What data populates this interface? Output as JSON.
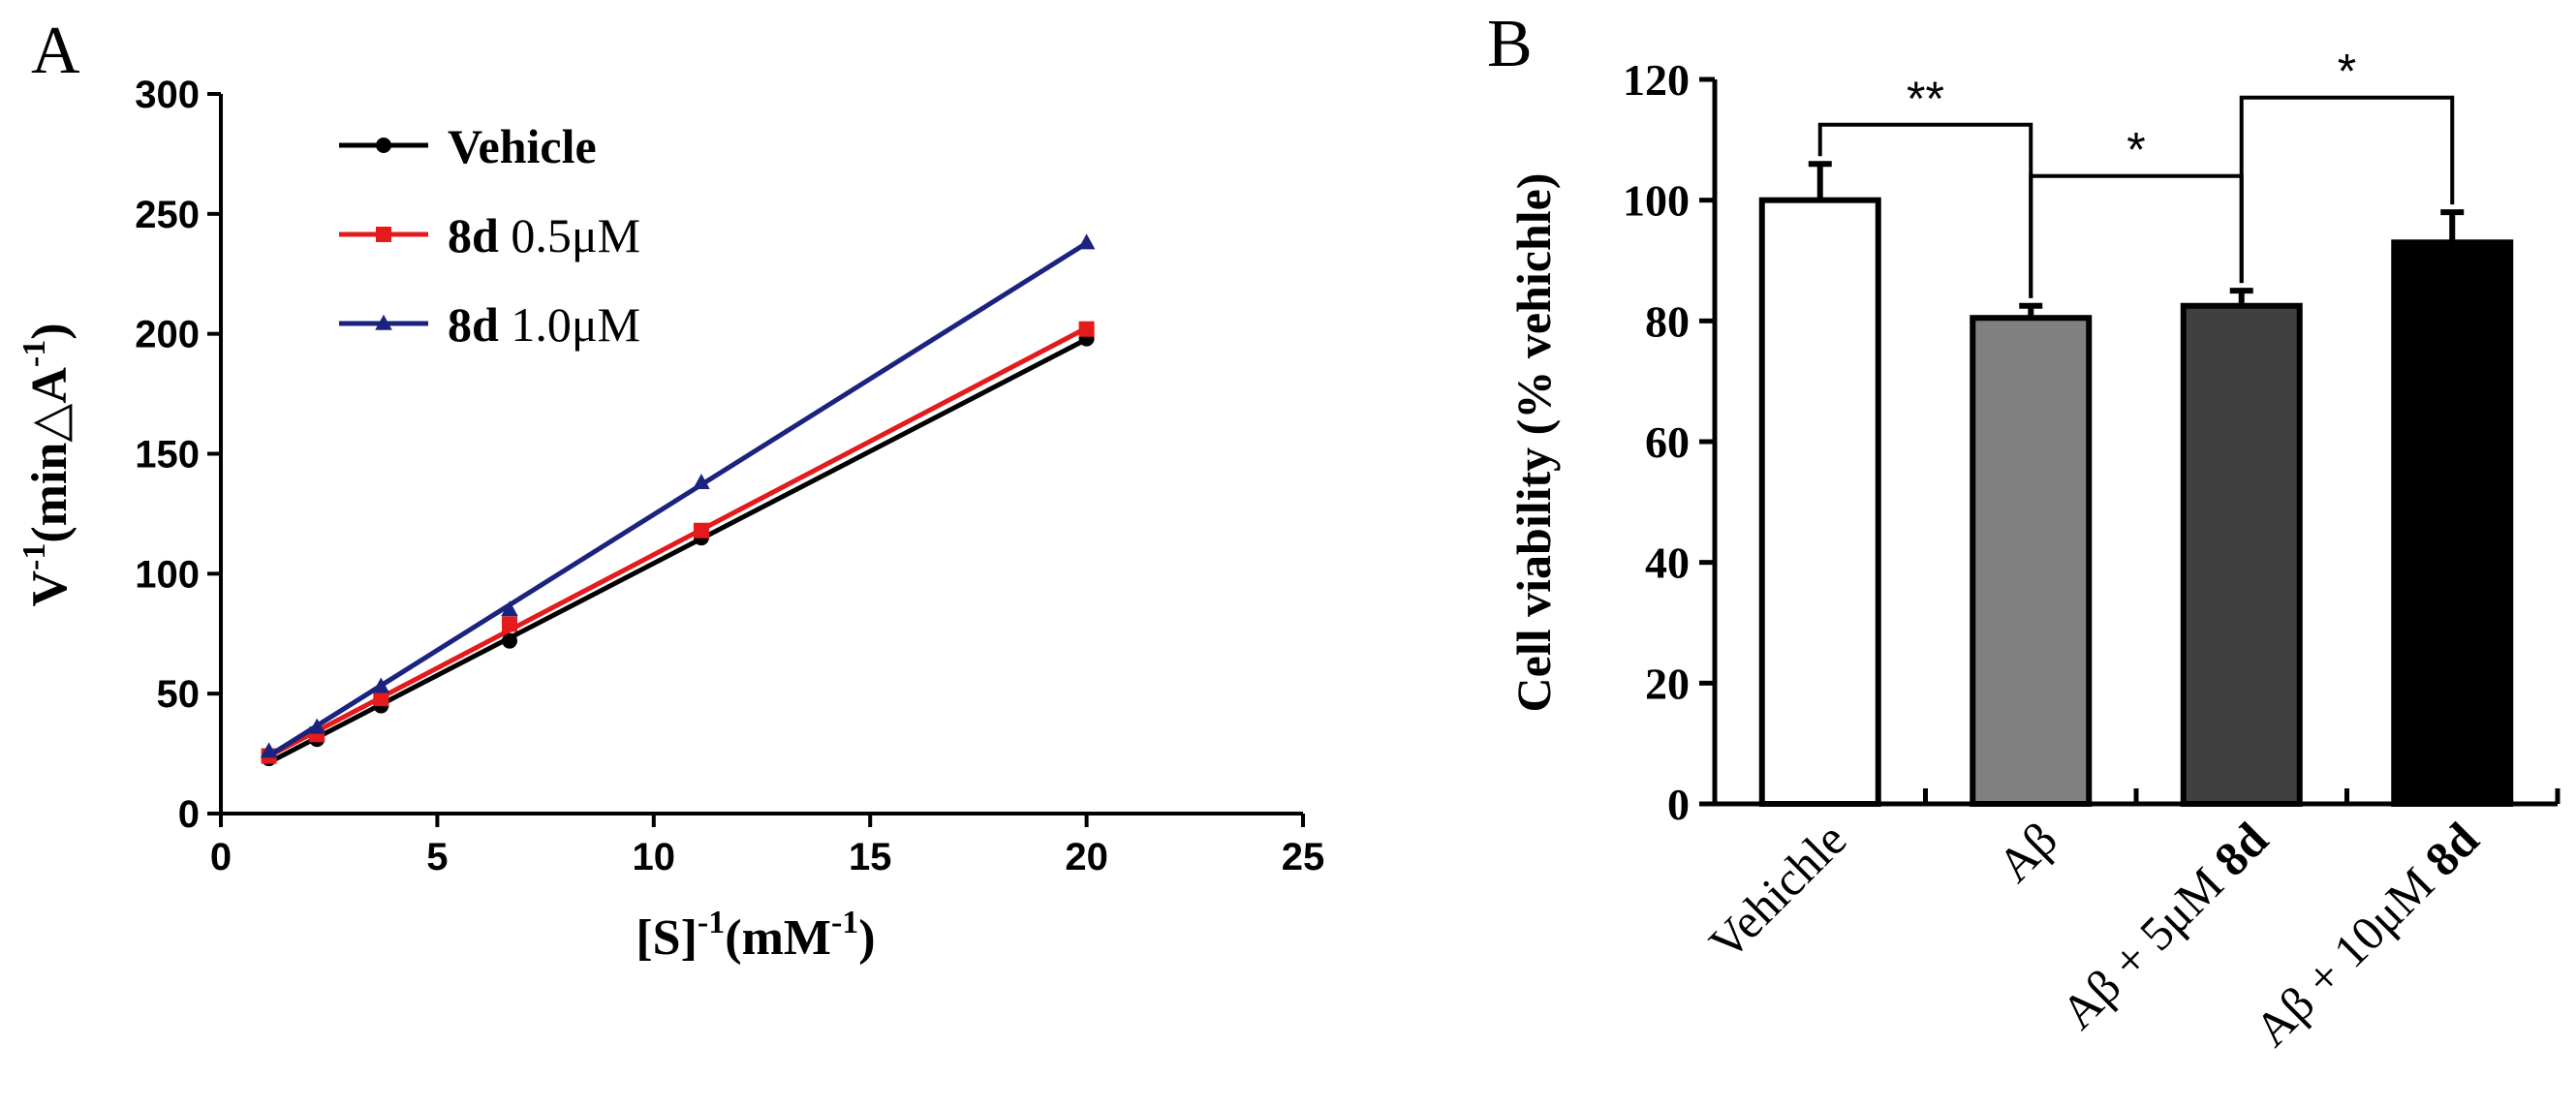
{
  "chart_data": [
    {
      "panel_label": "A",
      "type": "line",
      "xlabel": {
        "base": "[S]",
        "sup": "-1",
        "unit_open": "(mM",
        "unit_sup": "-1",
        "unit_close": ")"
      },
      "ylabel": {
        "base": "V",
        "sup": "-1",
        "unit_open": "(min△A",
        "unit_sup": "-1",
        "unit_close": ")"
      },
      "xlim": [
        0,
        25
      ],
      "ylim": [
        0,
        300
      ],
      "xticks": [
        "0",
        "5",
        "10",
        "15",
        "20",
        "25"
      ],
      "yticks": [
        "0",
        "50",
        "100",
        "150",
        "200",
        "250",
        "300"
      ],
      "grid": false,
      "legend_position": "top-left",
      "x": [
        1.11,
        2.22,
        3.7,
        6.67,
        11.1,
        20
      ],
      "series": [
        {
          "name": "Vehicle",
          "name_bold": "Vehicle",
          "name_rest": "",
          "marker": "circle",
          "color": "#000000",
          "values": [
            23,
            31,
            45,
            72,
            115,
            198
          ]
        },
        {
          "name": "8d 0.5μM",
          "name_bold": "8d",
          "name_rest": " 0.5μM",
          "marker": "square",
          "color": "#e41a1c",
          "values": [
            24,
            33,
            48,
            79,
            118,
            202
          ]
        },
        {
          "name": "8d 1.0μM",
          "name_bold": "8d",
          "name_rest": " 1.0μM",
          "marker": "triangle",
          "color": "#1a237e",
          "values": [
            26,
            36,
            53,
            85,
            138,
            238
          ]
        }
      ]
    },
    {
      "panel_label": "B",
      "type": "bar",
      "ylabel": "Cell viability (% vehichle)",
      "ylim": [
        0,
        120
      ],
      "yticks": [
        "0",
        "20",
        "40",
        "60",
        "80",
        "100",
        "120"
      ],
      "categories": [
        {
          "plain": "Vehichle",
          "bold": ""
        },
        {
          "plain": "Aβ",
          "bold": ""
        },
        {
          "plain": "Aβ + 5μM ",
          "bold": "8d"
        },
        {
          "plain": "Aβ + 10μM ",
          "bold": "8d"
        }
      ],
      "values": [
        100,
        80.5,
        82.5,
        93
      ],
      "errors": [
        6,
        2,
        2.5,
        5
      ],
      "bar_colors": [
        "#ffffff",
        "#808080",
        "#404040",
        "#000000"
      ],
      "significance": [
        {
          "from": 0,
          "to": 1,
          "label": "**"
        },
        {
          "from": 1,
          "to": 2,
          "label": "*"
        },
        {
          "from": 2,
          "to": 3,
          "label": "*"
        }
      ]
    }
  ]
}
